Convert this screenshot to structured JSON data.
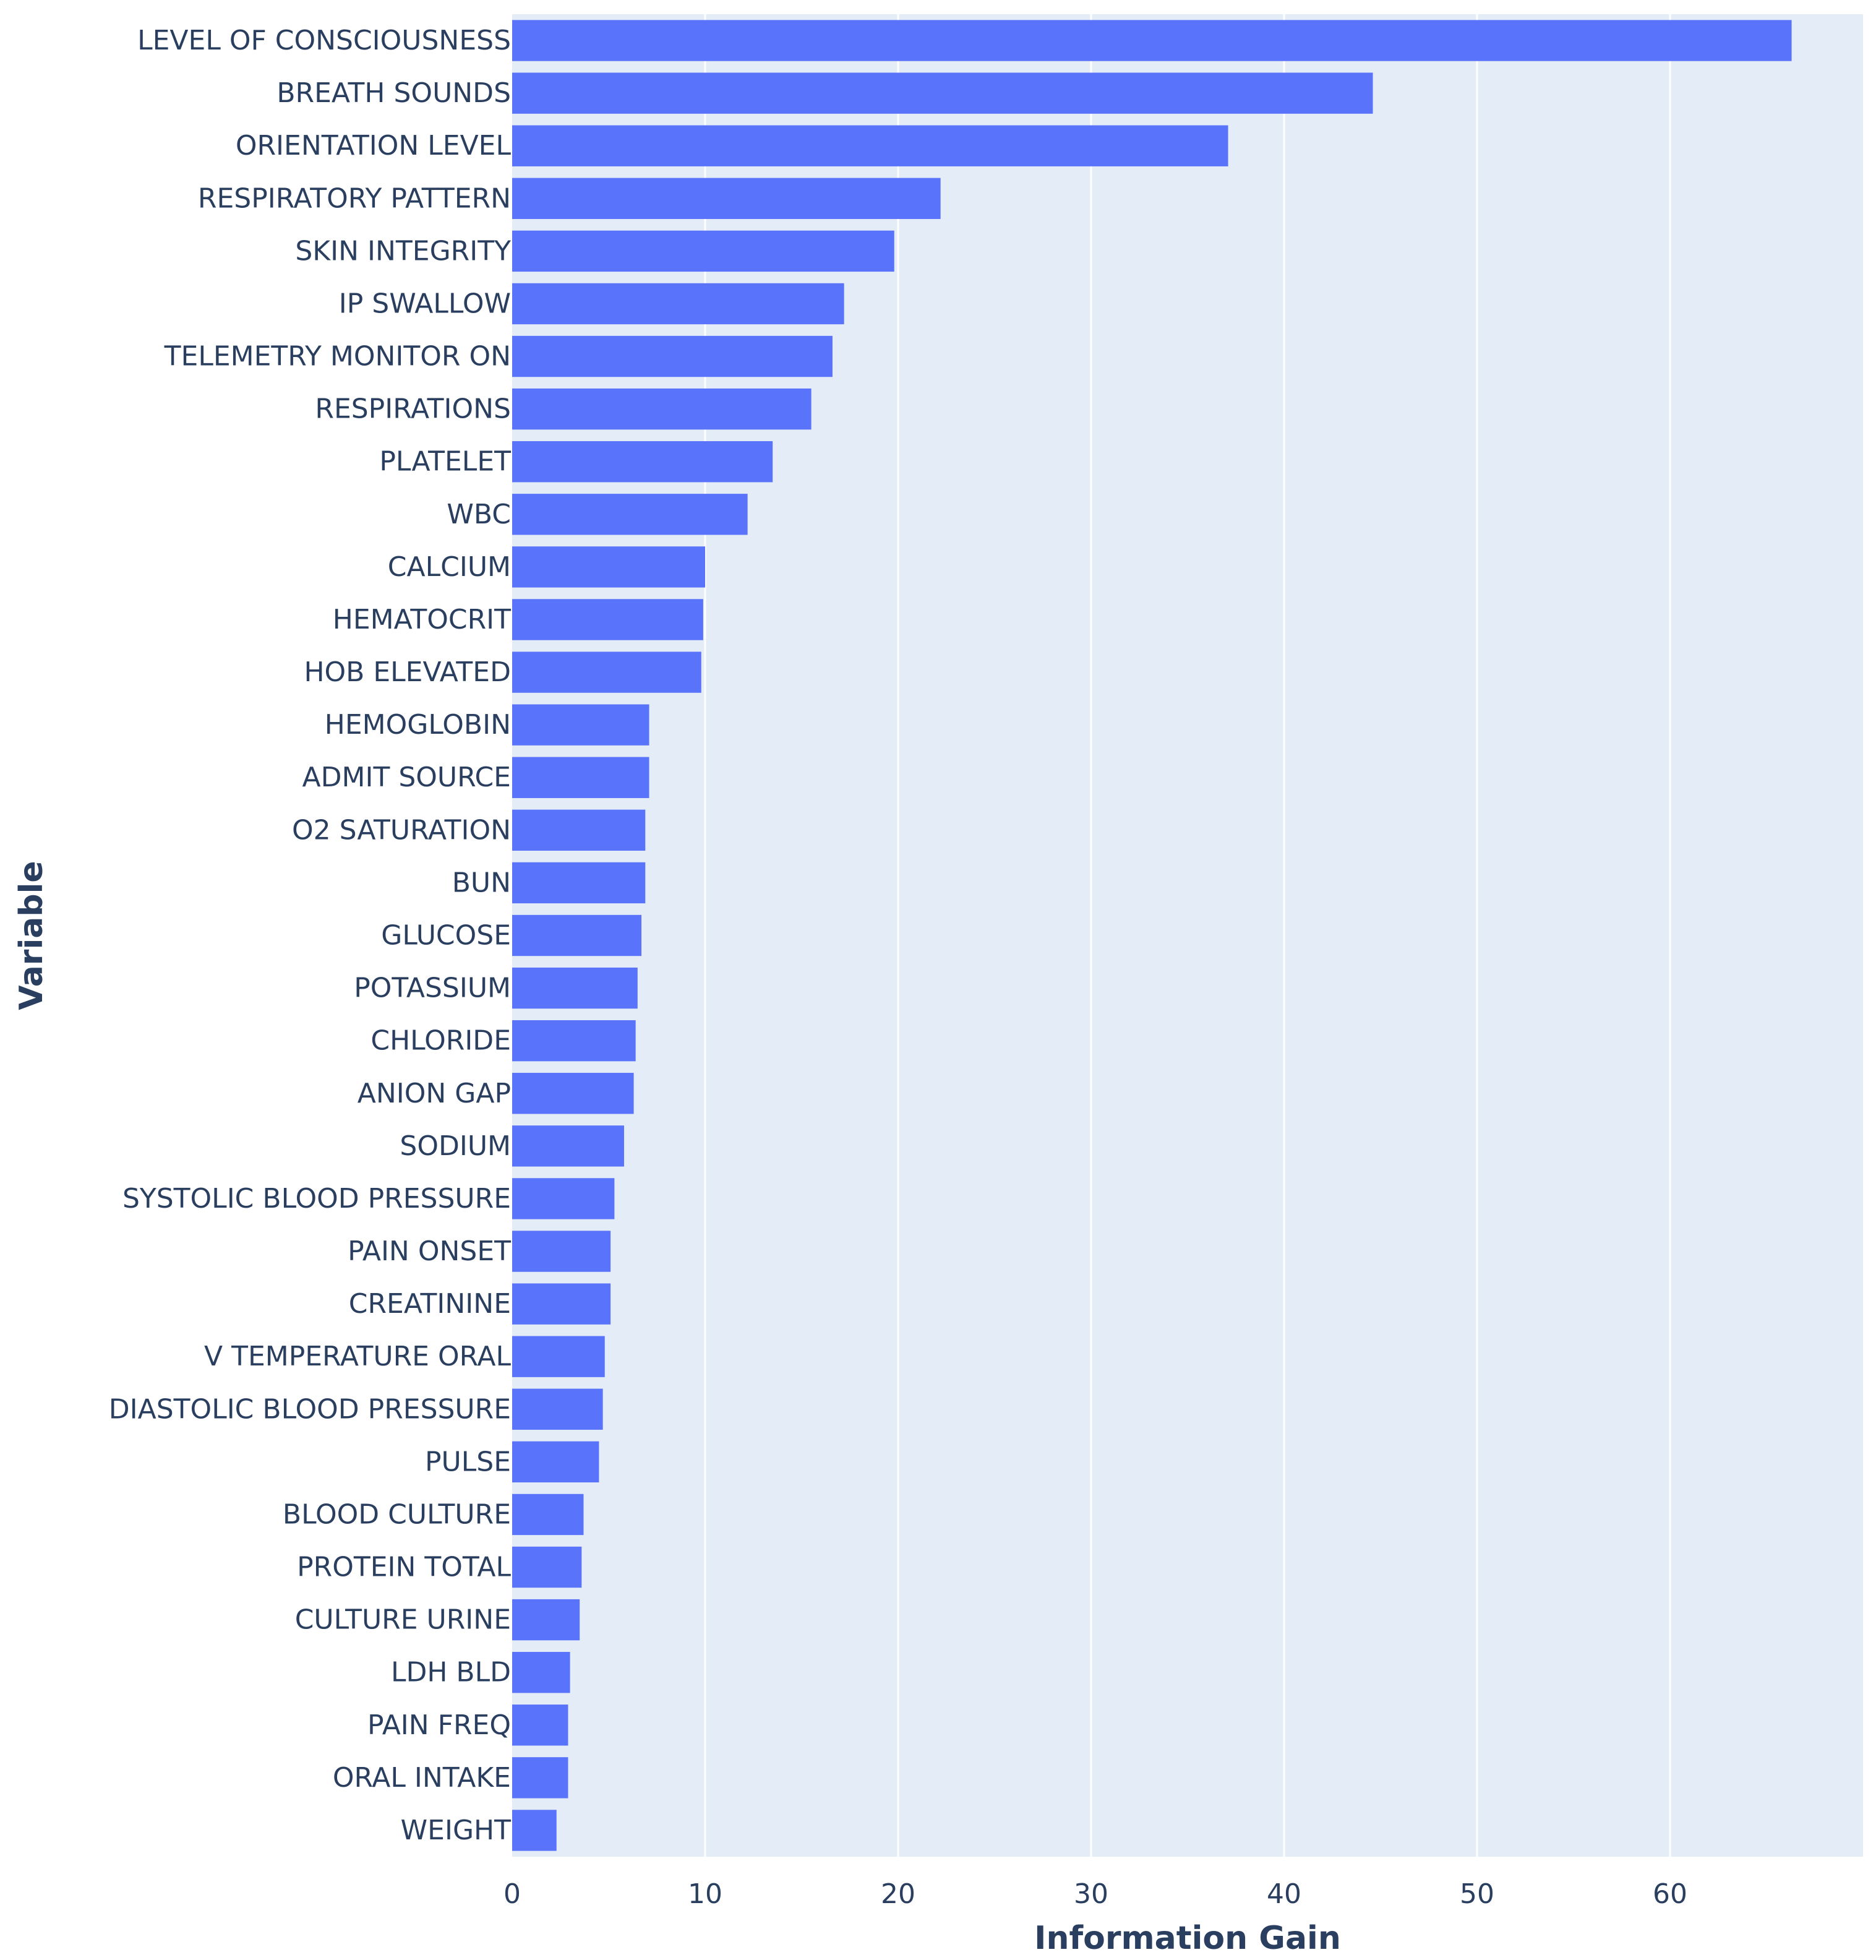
{
  "chart_data": {
    "type": "bar",
    "orientation": "horizontal",
    "xlabel": "Information Gain",
    "ylabel": "Variable",
    "xlim": [
      0,
      70
    ],
    "xticks": [
      0,
      10,
      20,
      30,
      40,
      50,
      60
    ],
    "grid": true,
    "colors": {
      "bar": "#5a73fb",
      "plot_background": "#e4ecf7",
      "grid": "#ffffff",
      "text": "#2a3f5f"
    },
    "categories": [
      "LEVEL OF CONSCIOUSNESS",
      "BREATH SOUNDS",
      "ORIENTATION LEVEL",
      "RESPIRATORY PATTERN",
      "SKIN INTEGRITY",
      "IP SWALLOW",
      "TELEMETRY MONITOR ON",
      "RESPIRATIONS",
      "PLATELET",
      "WBC",
      "CALCIUM",
      "HEMATOCRIT",
      "HOB ELEVATED",
      "HEMOGLOBIN",
      "ADMIT SOURCE",
      "O2 SATURATION",
      "BUN",
      "GLUCOSE",
      "POTASSIUM",
      "CHLORIDE",
      "ANION GAP",
      "SODIUM",
      "SYSTOLIC BLOOD PRESSURE",
      "PAIN ONSET",
      "CREATININE",
      "V TEMPERATURE ORAL",
      "DIASTOLIC BLOOD PRESSURE",
      "PULSE",
      "BLOOD CULTURE",
      "PROTEIN TOTAL",
      "CULTURE URINE",
      "LDH BLD",
      "PAIN FREQ",
      "ORAL INTAKE",
      "WEIGHT"
    ],
    "values": [
      66.3,
      44.6,
      37.1,
      22.2,
      19.8,
      17.2,
      16.6,
      15.5,
      13.5,
      12.2,
      10.0,
      9.9,
      9.8,
      7.1,
      7.1,
      6.9,
      6.9,
      6.7,
      6.5,
      6.4,
      6.3,
      5.8,
      5.3,
      5.1,
      5.1,
      4.8,
      4.7,
      4.5,
      3.7,
      3.6,
      3.5,
      3.0,
      2.9,
      2.9,
      2.3
    ]
  }
}
